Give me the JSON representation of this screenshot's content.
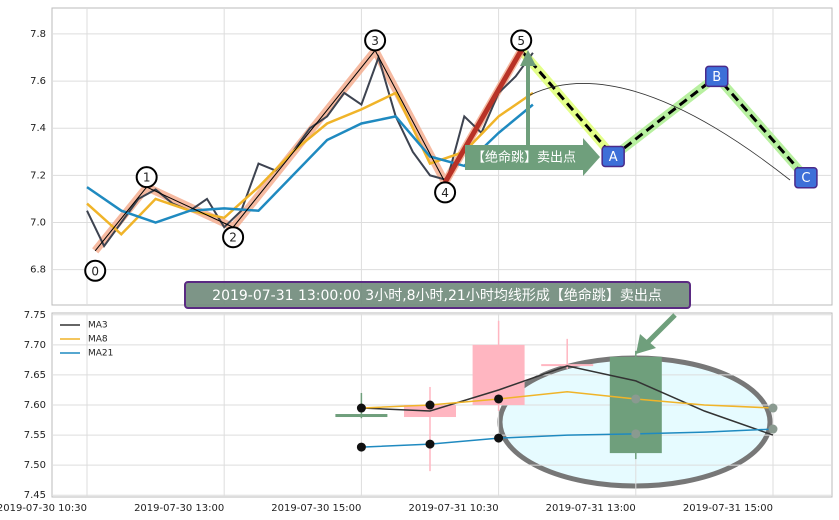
{
  "chart_data": [
    {
      "type": "line",
      "xlim": [
        -0.51,
        10.86
      ],
      "ylim": [
        6.65,
        7.91
      ],
      "yticks": [
        6.8,
        {
          "value": 7,
          "label": "7.0"
        },
        7.2,
        7.4,
        7.6,
        7.8
      ],
      "grid": true,
      "series": [
        {
          "color": "#3d4350",
          "x": [
            0,
            0.25,
            0.5,
            0.75,
            1,
            1.25,
            1.5,
            1.75,
            2,
            2.25,
            2.5,
            2.75,
            3,
            3.25,
            3.5,
            3.75,
            4,
            4.25,
            4.5,
            4.75,
            5,
            5.25,
            5.5,
            5.75,
            6,
            6.25,
            6.5
          ],
          "values": [
            7.05,
            6.9,
            7.0,
            7.1,
            7.14,
            7.08,
            7.05,
            7.1,
            6.98,
            7.05,
            7.25,
            7.22,
            7.3,
            7.4,
            7.45,
            7.55,
            7.5,
            7.7,
            7.45,
            7.3,
            7.2,
            7.18,
            7.45,
            7.38,
            7.55,
            7.62,
            7.72
          ]
        },
        {
          "color": "#f0b429",
          "x": [
            0,
            0.5,
            1,
            1.5,
            2,
            2.5,
            3,
            3.5,
            4,
            4.5,
            5,
            5.5,
            6,
            6.5
          ],
          "values": [
            7.08,
            6.95,
            7.1,
            7.05,
            7.02,
            7.15,
            7.3,
            7.42,
            7.48,
            7.55,
            7.25,
            7.3,
            7.45,
            7.55
          ]
        },
        {
          "color": "#1f8ac0",
          "x": [
            0,
            0.5,
            1,
            1.5,
            2,
            2.5,
            3,
            3.5,
            4,
            4.5,
            5,
            5.5,
            6,
            6.5
          ],
          "values": [
            7.15,
            7.05,
            7.0,
            7.05,
            7.06,
            7.05,
            7.2,
            7.35,
            7.42,
            7.45,
            7.28,
            7.24,
            7.38,
            7.5
          ]
        }
      ],
      "pattern": {
        "x": [
          0.12,
          0.87,
          2.13,
          4.2,
          5.22,
          6.33
        ],
        "values": [
          6.88,
          7.15,
          6.98,
          7.73,
          7.17,
          7.73
        ],
        "labels": [
          "0",
          "1",
          "2",
          "3",
          "4",
          "5"
        ]
      },
      "projection": {
        "x": [
          7.67,
          9.18,
          10.48
        ],
        "values": [
          7.28,
          7.62,
          7.19
        ],
        "labels": [
          "A",
          "B",
          "C"
        ]
      },
      "annotation": "【绝命跳】卖出点",
      "banner": "2019-07-31 13:00:00 3小时,8小时,21小时均线形成【绝命跳】卖出点"
    },
    {
      "type": "candlestick",
      "categories": [
        "2019-07-30 10:30",
        null,
        "2019-07-30 13:00",
        null,
        "2019-07-30 15:00",
        null,
        "2019-07-31 10:30",
        null,
        "2019-07-31 13:00",
        null,
        "2019-07-31 15:00"
      ],
      "ylim": [
        7.447,
        7.753
      ],
      "yticks": [
        7.45,
        {
          "value": 7.5,
          "label": "7.50"
        },
        7.55,
        {
          "value": 7.6,
          "label": "7.60"
        },
        7.65,
        {
          "value": 7.7,
          "label": "7.70"
        },
        7.75
      ],
      "grid": true,
      "up_color": "#ffb6c1",
      "down_color": "#6f9f7c",
      "open": [
        null,
        null,
        null,
        null,
        7.585,
        7.58,
        7.6,
        7.665,
        7.68,
        null,
        null
      ],
      "close": [
        null,
        null,
        null,
        null,
        7.58,
        7.6,
        7.7,
        7.668,
        7.52,
        null,
        null
      ],
      "high": [
        null,
        null,
        null,
        null,
        7.62,
        7.63,
        7.74,
        7.71,
        7.69,
        null,
        null
      ],
      "low": [
        null,
        null,
        null,
        null,
        7.578,
        7.49,
        7.59,
        7.66,
        7.51,
        null,
        null
      ],
      "series": [
        {
          "name": "MA3",
          "color": "#333333",
          "values": [
            null,
            null,
            null,
            null,
            7.595,
            7.59,
            7.625,
            7.665,
            7.64,
            7.59,
            7.55
          ]
        },
        {
          "name": "MA8",
          "color": "#f0b429",
          "values": [
            null,
            null,
            null,
            null,
            7.595,
            7.6,
            7.61,
            7.622,
            7.61,
            7.6,
            7.595
          ]
        },
        {
          "name": "MA21",
          "color": "#1f8ac0",
          "values": [
            null,
            null,
            null,
            null,
            7.53,
            7.535,
            7.545,
            7.55,
            7.552,
            7.555,
            7.56
          ]
        }
      ],
      "legend": "upper left"
    }
  ]
}
